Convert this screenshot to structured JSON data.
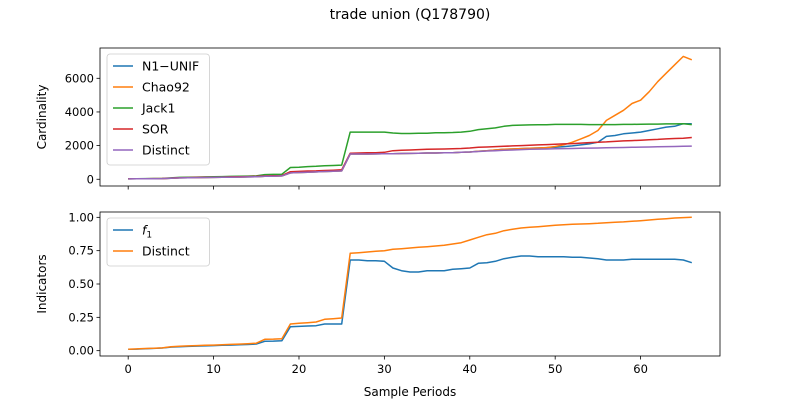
{
  "figure": {
    "title": "trade union (Q178790)",
    "xlabel": "Sample Periods"
  },
  "colors": {
    "blue": "#1f77b4",
    "orange": "#ff7f0e",
    "green": "#2ca02c",
    "red": "#d62728",
    "purple": "#9467bd"
  },
  "chart_data": [
    {
      "type": "line",
      "ylabel": "Cardinality",
      "xlim": [
        -3.3,
        69.3
      ],
      "ylim": [
        -400,
        7800
      ],
      "xticks": [
        0,
        10,
        20,
        30,
        40,
        50,
        60
      ],
      "yticks": [
        0,
        2000,
        4000,
        6000
      ],
      "yticklabels": [
        "0",
        "2000",
        "4000",
        "6000"
      ],
      "show_xticklabels": false,
      "legend": {
        "placement": "upper-left"
      },
      "x": [
        0,
        1,
        2,
        3,
        4,
        5,
        6,
        7,
        8,
        9,
        10,
        11,
        12,
        13,
        14,
        15,
        16,
        17,
        18,
        19,
        20,
        21,
        22,
        23,
        24,
        25,
        26,
        27,
        28,
        29,
        30,
        31,
        32,
        33,
        34,
        35,
        36,
        37,
        38,
        39,
        40,
        41,
        42,
        43,
        44,
        45,
        46,
        47,
        48,
        49,
        50,
        51,
        52,
        53,
        54,
        55,
        56,
        57,
        58,
        59,
        60,
        61,
        62,
        63,
        64,
        65,
        66
      ],
      "series": [
        {
          "name": "N1−UNIF",
          "color": "#1f77b4",
          "values": [
            20,
            25,
            30,
            35,
            40,
            60,
            80,
            90,
            100,
            105,
            110,
            115,
            120,
            130,
            140,
            150,
            180,
            180,
            200,
            380,
            400,
            420,
            440,
            460,
            480,
            500,
            1500,
            1500,
            1500,
            1510,
            1520,
            1520,
            1530,
            1540,
            1550,
            1560,
            1560,
            1570,
            1580,
            1600,
            1620,
            1660,
            1700,
            1740,
            1780,
            1800,
            1820,
            1840,
            1860,
            1880,
            1900,
            1940,
            1980,
            2040,
            2100,
            2200,
            2550,
            2600,
            2700,
            2750,
            2800,
            2900,
            3000,
            3100,
            3150,
            3300,
            3300
          ]
        },
        {
          "name": "Chao92",
          "color": "#ff7f0e",
          "values": [
            20,
            25,
            30,
            35,
            40,
            60,
            80,
            90,
            100,
            105,
            110,
            115,
            120,
            130,
            140,
            150,
            180,
            180,
            200,
            380,
            400,
            420,
            440,
            460,
            480,
            500,
            1500,
            1500,
            1500,
            1510,
            1520,
            1520,
            1530,
            1540,
            1550,
            1560,
            1560,
            1570,
            1580,
            1600,
            1620,
            1660,
            1700,
            1740,
            1780,
            1800,
            1820,
            1840,
            1860,
            1880,
            1950,
            2050,
            2200,
            2400,
            2600,
            2900,
            3500,
            3800,
            4100,
            4500,
            4700,
            5200,
            5800,
            6300,
            6800,
            7300,
            7100
          ]
        },
        {
          "name": "Jack1",
          "color": "#2ca02c",
          "values": [
            30,
            35,
            40,
            45,
            50,
            80,
            110,
            120,
            130,
            140,
            150,
            160,
            170,
            180,
            190,
            200,
            280,
            290,
            300,
            700,
            720,
            750,
            770,
            800,
            820,
            840,
            2800,
            2800,
            2800,
            2800,
            2800,
            2750,
            2720,
            2720,
            2730,
            2740,
            2760,
            2770,
            2780,
            2800,
            2850,
            2950,
            3000,
            3050,
            3150,
            3200,
            3220,
            3230,
            3240,
            3240,
            3260,
            3260,
            3260,
            3260,
            3250,
            3250,
            3250,
            3250,
            3260,
            3260,
            3270,
            3280,
            3280,
            3290,
            3290,
            3300,
            3250
          ]
        },
        {
          "name": "SOR",
          "color": "#d62728",
          "values": [
            25,
            30,
            35,
            40,
            45,
            70,
            90,
            100,
            110,
            115,
            120,
            130,
            140,
            150,
            160,
            170,
            200,
            210,
            220,
            450,
            470,
            490,
            500,
            520,
            540,
            560,
            1550,
            1560,
            1570,
            1580,
            1600,
            1700,
            1720,
            1740,
            1760,
            1780,
            1790,
            1800,
            1810,
            1830,
            1860,
            1900,
            1920,
            1940,
            1960,
            1980,
            2000,
            2020,
            2040,
            2060,
            2080,
            2100,
            2120,
            2150,
            2180,
            2200,
            2220,
            2250,
            2280,
            2300,
            2320,
            2350,
            2370,
            2400,
            2420,
            2440,
            2480
          ]
        },
        {
          "name": "Distinct",
          "color": "#9467bd",
          "values": [
            20,
            25,
            30,
            35,
            40,
            60,
            80,
            90,
            100,
            105,
            110,
            115,
            120,
            130,
            140,
            150,
            180,
            180,
            200,
            380,
            400,
            420,
            440,
            460,
            480,
            500,
            1500,
            1500,
            1500,
            1510,
            1520,
            1520,
            1530,
            1540,
            1550,
            1560,
            1560,
            1570,
            1580,
            1600,
            1620,
            1650,
            1680,
            1700,
            1720,
            1740,
            1760,
            1780,
            1790,
            1800,
            1810,
            1820,
            1830,
            1840,
            1850,
            1860,
            1870,
            1880,
            1890,
            1900,
            1910,
            1920,
            1930,
            1940,
            1950,
            1960,
            1970
          ]
        }
      ]
    },
    {
      "type": "line",
      "ylabel": "Indicators",
      "xlim": [
        -3.3,
        69.3
      ],
      "ylim": [
        -0.04,
        1.04
      ],
      "xticks": [
        0,
        10,
        20,
        30,
        40,
        50,
        60
      ],
      "xticklabels": [
        "0",
        "10",
        "20",
        "30",
        "40",
        "50",
        "60"
      ],
      "yticks": [
        0,
        0.25,
        0.5,
        0.75,
        1.0
      ],
      "yticklabels": [
        "0.00",
        "0.25",
        "0.50",
        "0.75",
        "1.00"
      ],
      "legend": {
        "placement": "upper-left"
      },
      "x": [
        0,
        1,
        2,
        3,
        4,
        5,
        6,
        7,
        8,
        9,
        10,
        11,
        12,
        13,
        14,
        15,
        16,
        17,
        18,
        19,
        20,
        21,
        22,
        23,
        24,
        25,
        26,
        27,
        28,
        29,
        30,
        31,
        32,
        33,
        34,
        35,
        36,
        37,
        38,
        39,
        40,
        41,
        42,
        43,
        44,
        45,
        46,
        47,
        48,
        49,
        50,
        51,
        52,
        53,
        54,
        55,
        56,
        57,
        58,
        59,
        60,
        61,
        62,
        63,
        64,
        65,
        66
      ],
      "series": [
        {
          "name": "f",
          "name_sub": "1",
          "color": "#1f77b4",
          "values": [
            0.01,
            0.012,
            0.015,
            0.017,
            0.02,
            0.027,
            0.03,
            0.032,
            0.034,
            0.036,
            0.038,
            0.04,
            0.042,
            0.044,
            0.046,
            0.05,
            0.07,
            0.072,
            0.075,
            0.18,
            0.182,
            0.185,
            0.187,
            0.2,
            0.2,
            0.2,
            0.68,
            0.68,
            0.675,
            0.675,
            0.67,
            0.62,
            0.6,
            0.59,
            0.59,
            0.6,
            0.6,
            0.6,
            0.61,
            0.615,
            0.62,
            0.655,
            0.66,
            0.67,
            0.69,
            0.7,
            0.71,
            0.71,
            0.705,
            0.705,
            0.705,
            0.705,
            0.7,
            0.7,
            0.695,
            0.69,
            0.68,
            0.68,
            0.68,
            0.685,
            0.685,
            0.685,
            0.685,
            0.685,
            0.685,
            0.68,
            0.66
          ]
        },
        {
          "name": "Distinct",
          "color": "#ff7f0e",
          "values": [
            0.01,
            0.013,
            0.016,
            0.018,
            0.021,
            0.029,
            0.033,
            0.036,
            0.038,
            0.04,
            0.042,
            0.044,
            0.047,
            0.049,
            0.052,
            0.056,
            0.085,
            0.087,
            0.09,
            0.2,
            0.205,
            0.21,
            0.215,
            0.235,
            0.24,
            0.245,
            0.73,
            0.735,
            0.74,
            0.745,
            0.75,
            0.76,
            0.765,
            0.77,
            0.775,
            0.78,
            0.785,
            0.79,
            0.8,
            0.81,
            0.83,
            0.85,
            0.87,
            0.88,
            0.9,
            0.91,
            0.92,
            0.925,
            0.93,
            0.935,
            0.94,
            0.945,
            0.948,
            0.95,
            0.952,
            0.955,
            0.96,
            0.963,
            0.966,
            0.97,
            0.975,
            0.98,
            0.985,
            0.99,
            0.995,
            0.998,
            1.0
          ]
        }
      ]
    }
  ]
}
